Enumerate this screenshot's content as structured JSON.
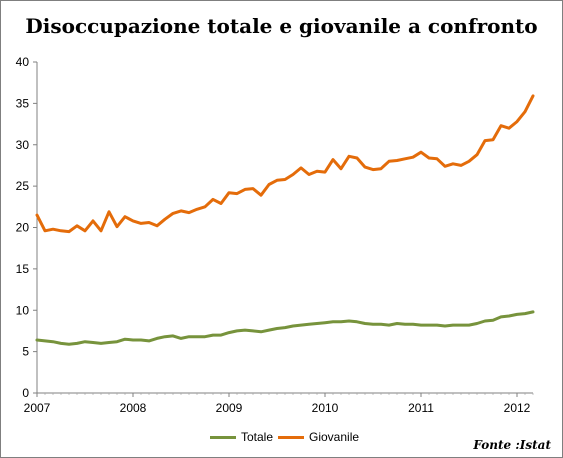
{
  "chart_data": {
    "type": "line",
    "title": "Disoccupazione totale e giovanile a confronto",
    "xlabel": "",
    "ylabel": "",
    "ylim": [
      0,
      40
    ],
    "yticks": [
      0,
      5,
      10,
      15,
      20,
      25,
      30,
      35,
      40
    ],
    "xticks": [
      "2007",
      "2008",
      "2009",
      "2010",
      "2011",
      "2012"
    ],
    "x_start": "2007-01",
    "grid": false,
    "legend": "bottom",
    "source": "Fonte :Istat",
    "series": [
      {
        "name": "Totale",
        "color": "#77933c",
        "values": [
          6.4,
          6.3,
          6.2,
          6.0,
          5.9,
          6.0,
          6.2,
          6.1,
          6.0,
          6.1,
          6.2,
          6.5,
          6.4,
          6.4,
          6.3,
          6.6,
          6.8,
          6.9,
          6.6,
          6.8,
          6.8,
          6.8,
          7.0,
          7.0,
          7.3,
          7.5,
          7.6,
          7.5,
          7.4,
          7.6,
          7.8,
          7.9,
          8.1,
          8.2,
          8.3,
          8.4,
          8.5,
          8.6,
          8.6,
          8.7,
          8.6,
          8.4,
          8.3,
          8.3,
          8.2,
          8.4,
          8.3,
          8.3,
          8.2,
          8.2,
          8.2,
          8.1,
          8.2,
          8.2,
          8.2,
          8.4,
          8.7,
          8.8,
          9.2,
          9.3,
          9.5,
          9.6,
          9.8
        ]
      },
      {
        "name": "Giovanile",
        "color": "#e46c0a",
        "values": [
          21.5,
          19.6,
          19.8,
          19.6,
          19.5,
          20.2,
          19.6,
          20.8,
          19.6,
          21.9,
          20.1,
          21.3,
          20.8,
          20.5,
          20.6,
          20.2,
          21.0,
          21.7,
          22.0,
          21.8,
          22.2,
          22.5,
          23.4,
          22.9,
          24.2,
          24.1,
          24.6,
          24.7,
          23.9,
          25.2,
          25.7,
          25.8,
          26.4,
          27.2,
          26.4,
          26.8,
          26.7,
          28.2,
          27.1,
          28.6,
          28.4,
          27.3,
          27.0,
          27.1,
          28.0,
          28.1,
          28.3,
          28.5,
          29.1,
          28.4,
          28.3,
          27.4,
          27.7,
          27.5,
          28.0,
          28.8,
          30.5,
          30.6,
          32.3,
          32.0,
          32.8,
          34.0,
          35.9
        ]
      }
    ]
  }
}
